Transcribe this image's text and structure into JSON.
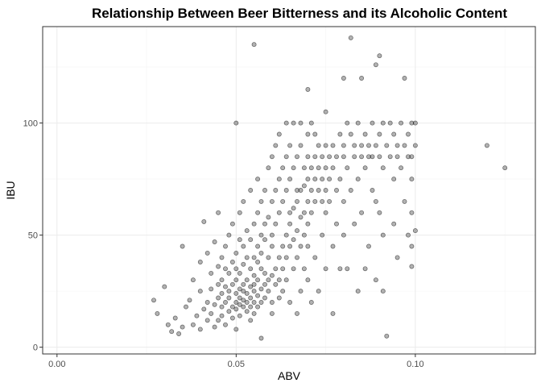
{
  "chart_data": {
    "type": "scatter",
    "title": "Relationship Between Beer Bitterness and its Alcoholic Content",
    "xlabel": "ABV",
    "ylabel": "IBU",
    "xlim": [
      -0.004,
      0.1335
    ],
    "ylim": [
      -3,
      143
    ],
    "x_ticks": [
      0.0,
      0.05,
      0.1
    ],
    "x_tick_labels": [
      "0.00",
      "0.05",
      "0.10"
    ],
    "y_ticks": [
      0,
      50,
      100
    ],
    "y_tick_labels": [
      "0",
      "50",
      "100"
    ],
    "grid": true,
    "point_color": "#000000",
    "point_alpha": 0.3,
    "points": [
      [
        0.027,
        21
      ],
      [
        0.028,
        15
      ],
      [
        0.03,
        27
      ],
      [
        0.031,
        10
      ],
      [
        0.032,
        7
      ],
      [
        0.033,
        13
      ],
      [
        0.034,
        6
      ],
      [
        0.035,
        9
      ],
      [
        0.035,
        45
      ],
      [
        0.036,
        18
      ],
      [
        0.037,
        21
      ],
      [
        0.038,
        10
      ],
      [
        0.038,
        30
      ],
      [
        0.039,
        14
      ],
      [
        0.04,
        8
      ],
      [
        0.04,
        25
      ],
      [
        0.04,
        38
      ],
      [
        0.041,
        17
      ],
      [
        0.041,
        56
      ],
      [
        0.042,
        12
      ],
      [
        0.042,
        20
      ],
      [
        0.042,
        42
      ],
      [
        0.043,
        26
      ],
      [
        0.043,
        33
      ],
      [
        0.043,
        15
      ],
      [
        0.044,
        9
      ],
      [
        0.044,
        19
      ],
      [
        0.044,
        47
      ],
      [
        0.045,
        22
      ],
      [
        0.045,
        28
      ],
      [
        0.045,
        36
      ],
      [
        0.045,
        12
      ],
      [
        0.045,
        60
      ],
      [
        0.046,
        18
      ],
      [
        0.046,
        30
      ],
      [
        0.046,
        24
      ],
      [
        0.046,
        40
      ],
      [
        0.046,
        14
      ],
      [
        0.047,
        20
      ],
      [
        0.047,
        27
      ],
      [
        0.047,
        35
      ],
      [
        0.047,
        45
      ],
      [
        0.047,
        10
      ],
      [
        0.048,
        16
      ],
      [
        0.048,
        22
      ],
      [
        0.048,
        33
      ],
      [
        0.048,
        50
      ],
      [
        0.048,
        25
      ],
      [
        0.049,
        18
      ],
      [
        0.049,
        28
      ],
      [
        0.049,
        38
      ],
      [
        0.049,
        13
      ],
      [
        0.049,
        55
      ],
      [
        0.05,
        20
      ],
      [
        0.05,
        24
      ],
      [
        0.05,
        30
      ],
      [
        0.05,
        17
      ],
      [
        0.05,
        42
      ],
      [
        0.05,
        100
      ],
      [
        0.05,
        35
      ],
      [
        0.05,
        8
      ],
      [
        0.051,
        19
      ],
      [
        0.051,
        26
      ],
      [
        0.051,
        33
      ],
      [
        0.051,
        22
      ],
      [
        0.051,
        48
      ],
      [
        0.051,
        60
      ],
      [
        0.051,
        14
      ],
      [
        0.052,
        21
      ],
      [
        0.052,
        28
      ],
      [
        0.052,
        37
      ],
      [
        0.052,
        18
      ],
      [
        0.052,
        45
      ],
      [
        0.052,
        25
      ],
      [
        0.052,
        65
      ],
      [
        0.053,
        20
      ],
      [
        0.053,
        30
      ],
      [
        0.053,
        24
      ],
      [
        0.053,
        40
      ],
      [
        0.053,
        16
      ],
      [
        0.053,
        52
      ],
      [
        0.054,
        22
      ],
      [
        0.054,
        35
      ],
      [
        0.054,
        27
      ],
      [
        0.054,
        18
      ],
      [
        0.054,
        48
      ],
      [
        0.054,
        70
      ],
      [
        0.054,
        12
      ],
      [
        0.055,
        25
      ],
      [
        0.055,
        32
      ],
      [
        0.055,
        20
      ],
      [
        0.055,
        40
      ],
      [
        0.055,
        55
      ],
      [
        0.055,
        28
      ],
      [
        0.055,
        15
      ],
      [
        0.055,
        135
      ],
      [
        0.056,
        23
      ],
      [
        0.056,
        30
      ],
      [
        0.056,
        38
      ],
      [
        0.056,
        45
      ],
      [
        0.056,
        60
      ],
      [
        0.056,
        18
      ],
      [
        0.056,
        75
      ],
      [
        0.057,
        26
      ],
      [
        0.057,
        35
      ],
      [
        0.057,
        42
      ],
      [
        0.057,
        20
      ],
      [
        0.057,
        50
      ],
      [
        0.057,
        65
      ],
      [
        0.057,
        4
      ],
      [
        0.058,
        28
      ],
      [
        0.058,
        33
      ],
      [
        0.058,
        48
      ],
      [
        0.058,
        55
      ],
      [
        0.058,
        22
      ],
      [
        0.058,
        70
      ],
      [
        0.059,
        30
      ],
      [
        0.059,
        40
      ],
      [
        0.059,
        25
      ],
      [
        0.059,
        58
      ],
      [
        0.059,
        80
      ],
      [
        0.06,
        32
      ],
      [
        0.06,
        45
      ],
      [
        0.06,
        20
      ],
      [
        0.06,
        65
      ],
      [
        0.06,
        50
      ],
      [
        0.06,
        85
      ],
      [
        0.06,
        15
      ],
      [
        0.061,
        35
      ],
      [
        0.061,
        55
      ],
      [
        0.061,
        28
      ],
      [
        0.061,
        70
      ],
      [
        0.061,
        90
      ],
      [
        0.062,
        40
      ],
      [
        0.062,
        30
      ],
      [
        0.062,
        60
      ],
      [
        0.062,
        75
      ],
      [
        0.062,
        22
      ],
      [
        0.062,
        95
      ],
      [
        0.063,
        45
      ],
      [
        0.063,
        35
      ],
      [
        0.063,
        65
      ],
      [
        0.063,
        80
      ],
      [
        0.063,
        25
      ],
      [
        0.064,
        50
      ],
      [
        0.064,
        40
      ],
      [
        0.064,
        70
      ],
      [
        0.064,
        85
      ],
      [
        0.064,
        30
      ],
      [
        0.064,
        100
      ],
      [
        0.065,
        55
      ],
      [
        0.065,
        45
      ],
      [
        0.065,
        75
      ],
      [
        0.065,
        60
      ],
      [
        0.065,
        90
      ],
      [
        0.065,
        20
      ],
      [
        0.066,
        62
      ],
      [
        0.066,
        48
      ],
      [
        0.066,
        80
      ],
      [
        0.066,
        35
      ],
      [
        0.066,
        100
      ],
      [
        0.067,
        65
      ],
      [
        0.067,
        52
      ],
      [
        0.067,
        85
      ],
      [
        0.067,
        40
      ],
      [
        0.067,
        70
      ],
      [
        0.067,
        15
      ],
      [
        0.068,
        70
      ],
      [
        0.068,
        58
      ],
      [
        0.068,
        90
      ],
      [
        0.068,
        45
      ],
      [
        0.068,
        25
      ],
      [
        0.068,
        100
      ],
      [
        0.069,
        72
      ],
      [
        0.069,
        60
      ],
      [
        0.069,
        80
      ],
      [
        0.069,
        50
      ],
      [
        0.069,
        35
      ],
      [
        0.07,
        75
      ],
      [
        0.07,
        65
      ],
      [
        0.07,
        85
      ],
      [
        0.07,
        55
      ],
      [
        0.07,
        95
      ],
      [
        0.07,
        30
      ],
      [
        0.07,
        45
      ],
      [
        0.07,
        115
      ],
      [
        0.071,
        70
      ],
      [
        0.071,
        80
      ],
      [
        0.071,
        60
      ],
      [
        0.071,
        20
      ],
      [
        0.071,
        100
      ],
      [
        0.072,
        75
      ],
      [
        0.072,
        85
      ],
      [
        0.072,
        65
      ],
      [
        0.072,
        40
      ],
      [
        0.072,
        95
      ],
      [
        0.073,
        70
      ],
      [
        0.073,
        90
      ],
      [
        0.073,
        80
      ],
      [
        0.073,
        25
      ],
      [
        0.074,
        65
      ],
      [
        0.074,
        85
      ],
      [
        0.074,
        75
      ],
      [
        0.074,
        50
      ],
      [
        0.075,
        70
      ],
      [
        0.075,
        90
      ],
      [
        0.075,
        80
      ],
      [
        0.075,
        35
      ],
      [
        0.075,
        60
      ],
      [
        0.075,
        105
      ],
      [
        0.076,
        85
      ],
      [
        0.076,
        75
      ],
      [
        0.076,
        65
      ],
      [
        0.077,
        90
      ],
      [
        0.077,
        80
      ],
      [
        0.077,
        45
      ],
      [
        0.077,
        15
      ],
      [
        0.078,
        85
      ],
      [
        0.078,
        70
      ],
      [
        0.078,
        55
      ],
      [
        0.079,
        95
      ],
      [
        0.079,
        75
      ],
      [
        0.079,
        35
      ],
      [
        0.08,
        90
      ],
      [
        0.08,
        85
      ],
      [
        0.08,
        65
      ],
      [
        0.08,
        120
      ],
      [
        0.08,
        50
      ],
      [
        0.081,
        100
      ],
      [
        0.081,
        80
      ],
      [
        0.081,
        35
      ],
      [
        0.082,
        138
      ],
      [
        0.082,
        95
      ],
      [
        0.082,
        70
      ],
      [
        0.083,
        90
      ],
      [
        0.083,
        85
      ],
      [
        0.083,
        55
      ],
      [
        0.084,
        100
      ],
      [
        0.084,
        75
      ],
      [
        0.084,
        25
      ],
      [
        0.085,
        90
      ],
      [
        0.085,
        85
      ],
      [
        0.085,
        60
      ],
      [
        0.085,
        120
      ],
      [
        0.086,
        95
      ],
      [
        0.086,
        80
      ],
      [
        0.086,
        35
      ],
      [
        0.087,
        90
      ],
      [
        0.087,
        85
      ],
      [
        0.087,
        45
      ],
      [
        0.088,
        100
      ],
      [
        0.088,
        85
      ],
      [
        0.088,
        70
      ],
      [
        0.089,
        126
      ],
      [
        0.089,
        90
      ],
      [
        0.089,
        65
      ],
      [
        0.089,
        30
      ],
      [
        0.09,
        130
      ],
      [
        0.09,
        95
      ],
      [
        0.09,
        85
      ],
      [
        0.09,
        60
      ],
      [
        0.091,
        100
      ],
      [
        0.091,
        80
      ],
      [
        0.091,
        50
      ],
      [
        0.091,
        25
      ],
      [
        0.092,
        90
      ],
      [
        0.092,
        5
      ],
      [
        0.093,
        100
      ],
      [
        0.093,
        85
      ],
      [
        0.094,
        95
      ],
      [
        0.094,
        75
      ],
      [
        0.094,
        55
      ],
      [
        0.095,
        90
      ],
      [
        0.095,
        85
      ],
      [
        0.095,
        40
      ],
      [
        0.096,
        100
      ],
      [
        0.096,
        80
      ],
      [
        0.097,
        120
      ],
      [
        0.097,
        90
      ],
      [
        0.097,
        65
      ],
      [
        0.098,
        95
      ],
      [
        0.098,
        85
      ],
      [
        0.098,
        50
      ],
      [
        0.099,
        100
      ],
      [
        0.099,
        85
      ],
      [
        0.099,
        75
      ],
      [
        0.099,
        60
      ],
      [
        0.099,
        45
      ],
      [
        0.099,
        36
      ],
      [
        0.1,
        100
      ],
      [
        0.1,
        90
      ],
      [
        0.1,
        52
      ],
      [
        0.12,
        90
      ],
      [
        0.125,
        80
      ]
    ]
  }
}
